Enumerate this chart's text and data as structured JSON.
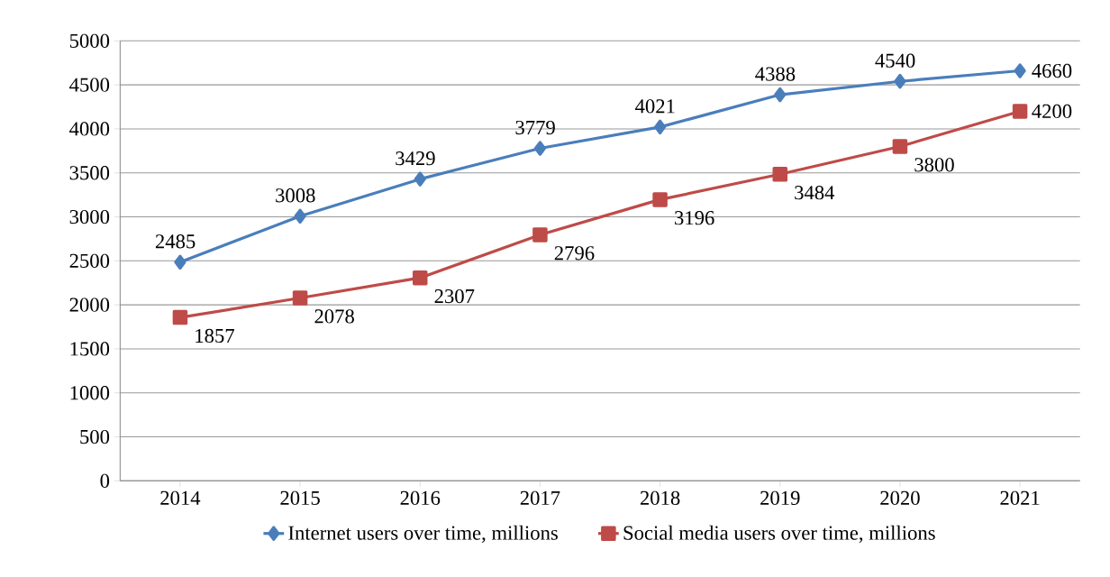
{
  "chart_data": {
    "type": "line",
    "categories": [
      "2014",
      "2015",
      "2016",
      "2017",
      "2018",
      "2019",
      "2020",
      "2021"
    ],
    "series": [
      {
        "name": "Internet users over time, millions",
        "color": "#4a7ebb",
        "marker": "diamond",
        "values": [
          2485,
          3008,
          3429,
          3779,
          4021,
          4388,
          4540,
          4660
        ]
      },
      {
        "name": "Social media users over time, millions",
        "color": "#be4b48",
        "marker": "square",
        "values": [
          1857,
          2078,
          2307,
          2796,
          3196,
          3484,
          3800,
          4200
        ]
      }
    ],
    "ylim": [
      0,
      5000
    ],
    "yticks": [
      0,
      500,
      1000,
      1500,
      2000,
      2500,
      3000,
      3500,
      4000,
      4500,
      5000
    ],
    "grid": "y",
    "legend": "bottom",
    "data_labels": true,
    "line_style": "solid"
  }
}
